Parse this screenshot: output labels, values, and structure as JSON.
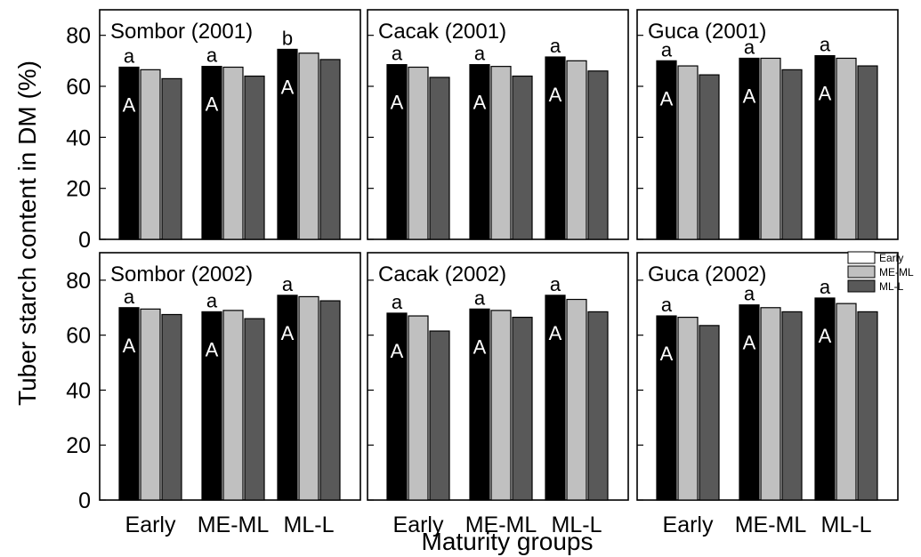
{
  "figure": {
    "ylabel": "Tuber starch content in DM (%)",
    "xlabel": "Maturity groups"
  },
  "legend": {
    "entries": [
      {
        "label": "Early",
        "color": "#ffffff"
      },
      {
        "label": "ME-ML",
        "color": "#c0c0c0"
      },
      {
        "label": "ML-L",
        "color": "#595959"
      }
    ]
  },
  "chart_data": [
    {
      "type": "bar",
      "title": "Sombor (2001)",
      "categories": [
        "Early",
        "ME-ML",
        "ML-L"
      ],
      "ylim": [
        0,
        90
      ],
      "yticks": [
        0,
        20,
        40,
        60,
        80
      ],
      "series": [
        {
          "color": "#000000",
          "values": [
            67.5,
            67.8,
            74.5
          ]
        },
        {
          "color": "#c0c0c0",
          "values": [
            66.5,
            67.5,
            73.0
          ]
        },
        {
          "color": "#595959",
          "values": [
            63.0,
            64.0,
            70.5
          ]
        }
      ],
      "group_letters_lower": [
        "a",
        "a",
        "b"
      ],
      "group_letters_upper": [
        "A",
        "A",
        "A"
      ]
    },
    {
      "type": "bar",
      "title": "Cacak (2001)",
      "categories": [
        "Early",
        "ME-ML",
        "ML-L"
      ],
      "ylim": [
        0,
        90
      ],
      "yticks": [
        0,
        20,
        40,
        60,
        80
      ],
      "series": [
        {
          "color": "#000000",
          "values": [
            68.5,
            68.5,
            71.5
          ]
        },
        {
          "color": "#c0c0c0",
          "values": [
            67.5,
            67.8,
            70.0
          ]
        },
        {
          "color": "#595959",
          "values": [
            63.5,
            64.0,
            66.0
          ]
        }
      ],
      "group_letters_lower": [
        "a",
        "a",
        "a"
      ],
      "group_letters_upper": [
        "A",
        "A",
        "A"
      ]
    },
    {
      "type": "bar",
      "title": "Guca (2001)",
      "categories": [
        "Early",
        "ME-ML",
        "ML-L"
      ],
      "ylim": [
        0,
        90
      ],
      "yticks": [
        0,
        20,
        40,
        60,
        80
      ],
      "series": [
        {
          "color": "#000000",
          "values": [
            70.0,
            71.0,
            72.0
          ]
        },
        {
          "color": "#c0c0c0",
          "values": [
            68.0,
            71.0,
            71.0
          ]
        },
        {
          "color": "#595959",
          "values": [
            64.5,
            66.5,
            68.0
          ]
        }
      ],
      "group_letters_lower": [
        "a",
        "a",
        "a"
      ],
      "group_letters_upper": [
        "A",
        "A",
        "A"
      ]
    },
    {
      "type": "bar",
      "title": "Sombor (2002)",
      "categories": [
        "Early",
        "ME-ML",
        "ML-L"
      ],
      "ylim": [
        0,
        90
      ],
      "yticks": [
        0,
        20,
        40,
        60,
        80
      ],
      "series": [
        {
          "color": "#000000",
          "values": [
            70.0,
            68.5,
            74.5
          ]
        },
        {
          "color": "#c0c0c0",
          "values": [
            69.5,
            69.0,
            74.0
          ]
        },
        {
          "color": "#595959",
          "values": [
            67.5,
            66.0,
            72.5
          ]
        }
      ],
      "group_letters_lower": [
        "a",
        "a",
        "a"
      ],
      "group_letters_upper": [
        "A",
        "A",
        "A"
      ]
    },
    {
      "type": "bar",
      "title": "Cacak (2002)",
      "categories": [
        "Early",
        "ME-ML",
        "ML-L"
      ],
      "ylim": [
        0,
        90
      ],
      "yticks": [
        0,
        20,
        40,
        60,
        80
      ],
      "series": [
        {
          "color": "#000000",
          "values": [
            68.0,
            69.5,
            74.5
          ]
        },
        {
          "color": "#c0c0c0",
          "values": [
            67.0,
            69.0,
            73.0
          ]
        },
        {
          "color": "#595959",
          "values": [
            61.5,
            66.5,
            68.5
          ]
        }
      ],
      "group_letters_lower": [
        "a",
        "a",
        "a"
      ],
      "group_letters_upper": [
        "A",
        "A",
        "A"
      ]
    },
    {
      "type": "bar",
      "title": "Guca (2002)",
      "categories": [
        "Early",
        "ME-ML",
        "ML-L"
      ],
      "ylim": [
        0,
        90
      ],
      "yticks": [
        0,
        20,
        40,
        60,
        80
      ],
      "series": [
        {
          "color": "#000000",
          "values": [
            67.0,
            71.0,
            73.5
          ]
        },
        {
          "color": "#c0c0c0",
          "values": [
            66.5,
            70.0,
            71.5
          ]
        },
        {
          "color": "#595959",
          "values": [
            63.5,
            68.5,
            68.5
          ]
        }
      ],
      "group_letters_lower": [
        "a",
        "a",
        "a"
      ],
      "group_letters_upper": [
        "A",
        "A",
        "A"
      ]
    }
  ]
}
